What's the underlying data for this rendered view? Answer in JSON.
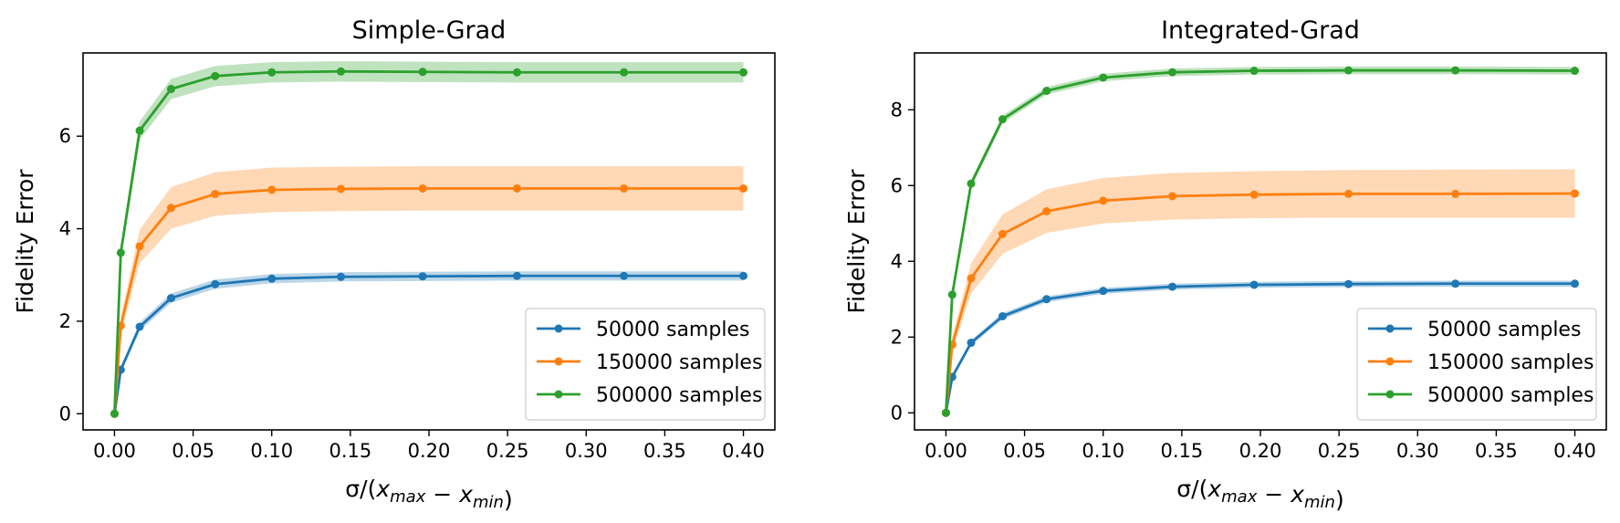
{
  "chart_data": [
    {
      "type": "line",
      "title": "Simple-Grad",
      "ylabel": "Fidelity Error",
      "xlabel": {
        "prefix": "σ/(",
        "x1": "x",
        "sub1": "max",
        "minus": " − ",
        "x2": "x",
        "sub2": "min",
        "suffix": ")"
      },
      "xlim": [
        -0.02,
        0.42
      ],
      "ylim": [
        -0.35,
        7.8
      ],
      "xticks": [
        0.0,
        0.05,
        0.1,
        0.15,
        0.2,
        0.25,
        0.3,
        0.35,
        0.4
      ],
      "xtick_labels": [
        "0.00",
        "0.05",
        "0.10",
        "0.15",
        "0.20",
        "0.25",
        "0.30",
        "0.35",
        "0.40"
      ],
      "yticks": [
        0,
        2,
        4,
        6
      ],
      "ytick_labels": [
        "0",
        "2",
        "4",
        "6"
      ],
      "legend_position": "lower-right",
      "x": [
        0.0,
        0.004,
        0.016,
        0.036,
        0.064,
        0.1,
        0.144,
        0.196,
        0.256,
        0.324,
        0.4
      ],
      "series": [
        {
          "name": "50000 samples",
          "color": "#1f77b4",
          "values": [
            0.0,
            0.95,
            1.88,
            2.5,
            2.8,
            2.92,
            2.96,
            2.97,
            2.98,
            2.98,
            2.98
          ],
          "lower": [
            0.0,
            0.88,
            1.79,
            2.4,
            2.7,
            2.82,
            2.86,
            2.87,
            2.88,
            2.88,
            2.88
          ],
          "upper": [
            0.0,
            1.02,
            1.97,
            2.6,
            2.9,
            3.02,
            3.06,
            3.07,
            3.08,
            3.08,
            3.08
          ]
        },
        {
          "name": "150000 samples",
          "color": "#ff7f0e",
          "values": [
            0.0,
            1.9,
            3.62,
            4.45,
            4.75,
            4.84,
            4.86,
            4.87,
            4.87,
            4.87,
            4.87
          ],
          "lower": [
            0.0,
            1.7,
            3.25,
            4.0,
            4.28,
            4.36,
            4.38,
            4.39,
            4.39,
            4.39,
            4.39
          ],
          "upper": [
            0.0,
            2.1,
            3.98,
            4.9,
            5.22,
            5.32,
            5.34,
            5.35,
            5.35,
            5.35,
            5.35
          ]
        },
        {
          "name": "500000 samples",
          "color": "#2ca02c",
          "values": [
            0.0,
            3.48,
            6.12,
            7.02,
            7.3,
            7.38,
            7.4,
            7.39,
            7.38,
            7.38,
            7.38
          ],
          "lower": [
            0.0,
            3.3,
            5.92,
            6.8,
            7.08,
            7.16,
            7.18,
            7.17,
            7.16,
            7.16,
            7.16
          ],
          "upper": [
            0.0,
            3.66,
            6.32,
            7.24,
            7.52,
            7.6,
            7.62,
            7.61,
            7.6,
            7.6,
            7.6
          ]
        }
      ]
    },
    {
      "type": "line",
      "title": "Integrated-Grad",
      "ylabel": "Fidelity Error",
      "xlabel": {
        "prefix": "σ/(",
        "x1": "x",
        "sub1": "max",
        "minus": " − ",
        "x2": "x",
        "sub2": "min",
        "suffix": ")"
      },
      "xlim": [
        -0.02,
        0.42
      ],
      "ylim": [
        -0.45,
        9.5
      ],
      "xticks": [
        0.0,
        0.05,
        0.1,
        0.15,
        0.2,
        0.25,
        0.3,
        0.35,
        0.4
      ],
      "xtick_labels": [
        "0.00",
        "0.05",
        "0.10",
        "0.15",
        "0.20",
        "0.25",
        "0.30",
        "0.35",
        "0.40"
      ],
      "yticks": [
        0,
        2,
        4,
        6,
        8
      ],
      "ytick_labels": [
        "0",
        "2",
        "4",
        "6",
        "8"
      ],
      "legend_position": "lower-right",
      "x": [
        0.0,
        0.004,
        0.016,
        0.036,
        0.064,
        0.1,
        0.144,
        0.196,
        0.256,
        0.324,
        0.4
      ],
      "series": [
        {
          "name": "50000 samples",
          "color": "#1f77b4",
          "values": [
            0.0,
            0.95,
            1.85,
            2.55,
            3.0,
            3.22,
            3.33,
            3.38,
            3.4,
            3.41,
            3.41
          ],
          "lower": [
            0.0,
            0.9,
            1.78,
            2.47,
            2.92,
            3.14,
            3.25,
            3.3,
            3.32,
            3.33,
            3.33
          ],
          "upper": [
            0.0,
            1.0,
            1.92,
            2.63,
            3.08,
            3.3,
            3.41,
            3.46,
            3.48,
            3.49,
            3.49
          ]
        },
        {
          "name": "150000 samples",
          "color": "#ff7f0e",
          "values": [
            0.0,
            1.8,
            3.55,
            4.72,
            5.32,
            5.6,
            5.72,
            5.76,
            5.78,
            5.78,
            5.79
          ],
          "lower": [
            0.0,
            1.6,
            3.15,
            4.2,
            4.75,
            5.0,
            5.1,
            5.14,
            5.15,
            5.15,
            5.15
          ],
          "upper": [
            0.0,
            2.0,
            3.95,
            5.24,
            5.9,
            6.2,
            6.33,
            6.38,
            6.41,
            6.42,
            6.43
          ]
        },
        {
          "name": "500000 samples",
          "color": "#2ca02c",
          "values": [
            0.0,
            3.12,
            6.05,
            7.75,
            8.5,
            8.85,
            8.99,
            9.03,
            9.04,
            9.04,
            9.03
          ],
          "lower": [
            0.0,
            3.02,
            5.95,
            7.65,
            8.4,
            8.75,
            8.89,
            8.93,
            8.94,
            8.94,
            8.93
          ],
          "upper": [
            0.0,
            3.22,
            6.15,
            7.85,
            8.6,
            8.95,
            9.09,
            9.13,
            9.14,
            9.14,
            9.13
          ]
        }
      ]
    }
  ]
}
